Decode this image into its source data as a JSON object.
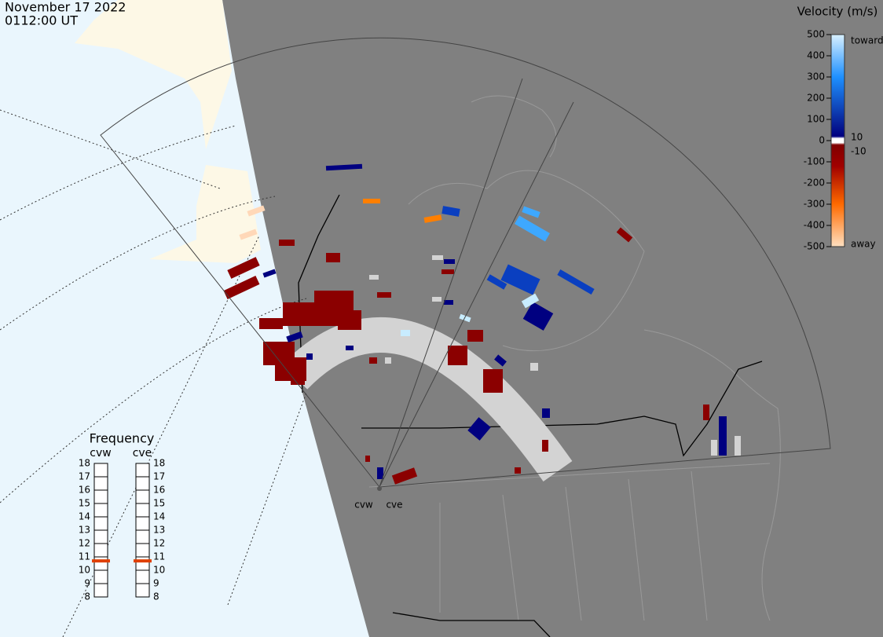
{
  "header": {
    "date": "November 17 2022",
    "time": "0112:00 UT"
  },
  "colorbar": {
    "title": "Velocity (m/s)",
    "ticks": [
      500,
      400,
      300,
      200,
      100,
      0,
      -100,
      -200,
      -300,
      -400,
      -500
    ],
    "toward": "toward",
    "away": "away",
    "inner_ticks": [
      10,
      -10
    ]
  },
  "frequency": {
    "title": "Frequency",
    "range": [
      8,
      18
    ],
    "ticks": [
      18,
      17,
      16,
      15,
      14,
      13,
      12,
      11,
      10,
      9,
      8
    ],
    "radars": [
      {
        "name": "cvw",
        "value": 10.7
      },
      {
        "name": "cve",
        "value": 10.7
      }
    ]
  },
  "map": {
    "radar_labels": [
      "cvw",
      "cve"
    ]
  }
}
